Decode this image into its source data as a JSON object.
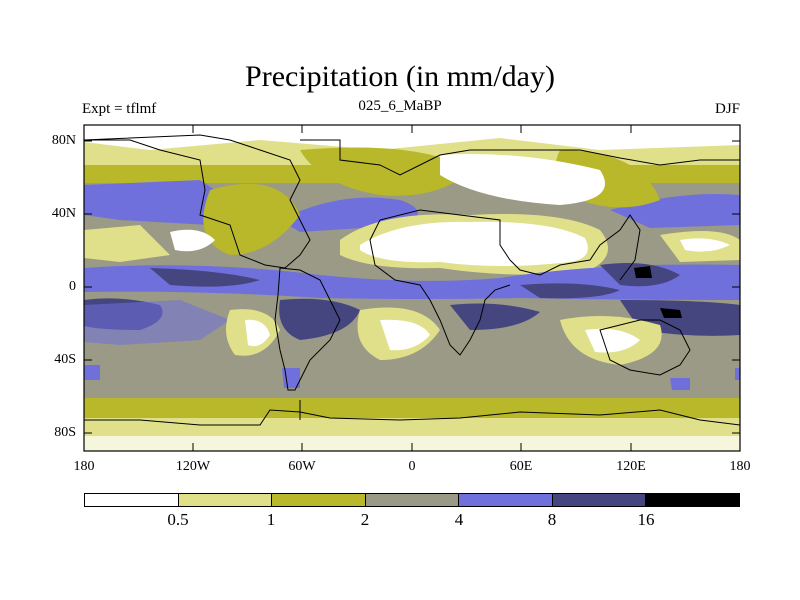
{
  "title": "Precipitation (in mm/day)",
  "subtitle_left": "Expt = tflmf",
  "subtitle_center": "025_6_MaBP",
  "subtitle_right": "DJF",
  "map": {
    "lon_range": [
      -180,
      180
    ],
    "lat_range": [
      -90,
      90
    ],
    "lat_ticks": [
      "80N",
      "40N",
      "0",
      "40S",
      "80S"
    ],
    "lon_ticks": [
      "180",
      "120W",
      "60W",
      "0",
      "60E",
      "120E",
      "180"
    ]
  },
  "legend": {
    "colors": [
      "#ffffff",
      "#e0e08a",
      "#b8b82a",
      "#9a9a86",
      "#7070dd",
      "#454580",
      "#000000"
    ],
    "labels": [
      "0.5",
      "1",
      "2",
      "4",
      "8",
      "16"
    ]
  }
}
